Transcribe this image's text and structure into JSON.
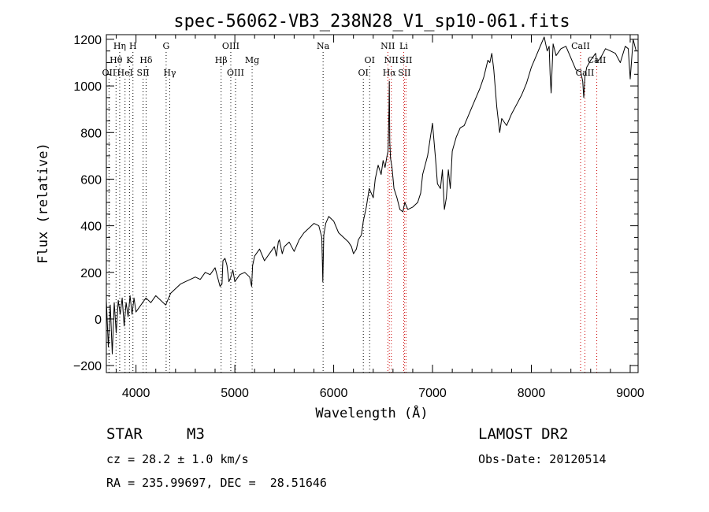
{
  "chart_data": {
    "type": "line",
    "title": "spec-56062-VB3_238N28_V1_sp10-061.fits",
    "xlabel": "Wavelength (Å)",
    "ylabel": "Flux (relative)",
    "xlim": [
      3700,
      9080
    ],
    "ylim": [
      -230,
      1220
    ],
    "xticks": [
      4000,
      5000,
      6000,
      7000,
      8000,
      9000
    ],
    "yticks": [
      -200,
      0,
      200,
      400,
      600,
      800,
      1000,
      1200
    ],
    "grid": false,
    "series": [
      {
        "x": [
          3700,
          3720,
          3740,
          3760,
          3780,
          3800,
          3820,
          3840,
          3860,
          3880,
          3900,
          3920,
          3940,
          3960,
          3980,
          4000,
          4050,
          4100,
          4150,
          4200,
          4250,
          4300,
          4350,
          4400,
          4450,
          4500,
          4550,
          4600,
          4650,
          4700,
          4750,
          4800,
          4850,
          4870,
          4880,
          4900,
          4920,
          4940,
          4960,
          4980,
          5000,
          5050,
          5100,
          5150,
          5170,
          5180,
          5200,
          5250,
          5300,
          5350,
          5400,
          5420,
          5440,
          5450,
          5480,
          5500,
          5550,
          5600,
          5650,
          5700,
          5750,
          5800,
          5850,
          5880,
          5890,
          5900,
          5920,
          5950,
          6000,
          6050,
          6100,
          6150,
          6180,
          6200,
          6230,
          6250,
          6280,
          6300,
          6330,
          6360,
          6400,
          6420,
          6450,
          6480,
          6500,
          6520,
          6540,
          6550,
          6560,
          6563,
          6568,
          6575,
          6590,
          6610,
          6640,
          6670,
          6700,
          6720,
          6750,
          6800,
          6850,
          6880,
          6900,
          6950,
          7000,
          7030,
          7050,
          7080,
          7100,
          7120,
          7140,
          7160,
          7180,
          7200,
          7240,
          7280,
          7320,
          7360,
          7400,
          7440,
          7480,
          7520,
          7560,
          7580,
          7600,
          7620,
          7650,
          7680,
          7700,
          7750,
          7800,
          7850,
          7900,
          7950,
          8000,
          8050,
          8100,
          8130,
          8160,
          8180,
          8190,
          8200,
          8220,
          8250,
          8300,
          8350,
          8400,
          8450,
          8500,
          8520,
          8530,
          8542,
          8560,
          8600,
          8650,
          8662,
          8700,
          8750,
          8800,
          8850,
          8900,
          8950,
          8980,
          9000,
          9030,
          9060
        ],
        "y": [
          80,
          -120,
          60,
          -150,
          70,
          -60,
          80,
          20,
          90,
          -30,
          70,
          10,
          100,
          20,
          90,
          30,
          60,
          90,
          70,
          100,
          80,
          60,
          110,
          130,
          150,
          160,
          170,
          180,
          170,
          200,
          190,
          220,
          140,
          150,
          250,
          260,
          230,
          160,
          180,
          210,
          160,
          190,
          200,
          180,
          140,
          230,
          270,
          300,
          250,
          280,
          310,
          270,
          330,
          340,
          280,
          310,
          330,
          290,
          340,
          370,
          390,
          410,
          400,
          350,
          160,
          360,
          410,
          440,
          420,
          370,
          350,
          330,
          310,
          280,
          300,
          340,
          360,
          420,
          480,
          560,
          520,
          600,
          660,
          620,
          680,
          650,
          700,
          720,
          900,
          1020,
          760,
          690,
          650,
          560,
          520,
          470,
          460,
          500,
          470,
          480,
          500,
          540,
          620,
          700,
          840,
          690,
          580,
          560,
          640,
          470,
          520,
          640,
          560,
          720,
          780,
          820,
          830,
          870,
          910,
          950,
          990,
          1040,
          1110,
          1100,
          1140,
          1070,
          910,
          800,
          860,
          830,
          880,
          920,
          960,
          1010,
          1080,
          1130,
          1180,
          1210,
          1150,
          1170,
          1050,
          970,
          1180,
          1130,
          1160,
          1170,
          1120,
          1070,
          1060,
          1020,
          950,
          1040,
          1080,
          1110,
          1140,
          1100,
          1120,
          1160,
          1150,
          1140,
          1100,
          1170,
          1160,
          1030,
          1200,
          1150
        ]
      }
    ],
    "line_markers": [
      {
        "label": "OII",
        "x": 3727,
        "row": 3,
        "color": "black"
      },
      {
        "label": "Hθ",
        "x": 3798,
        "row": 2,
        "color": "black"
      },
      {
        "label": "Hη",
        "x": 3835,
        "row": 1,
        "color": "black"
      },
      {
        "label": "HeI",
        "x": 3889,
        "row": 3,
        "color": "black"
      },
      {
        "label": "K",
        "x": 3934,
        "row": 2,
        "color": "black"
      },
      {
        "label": "H",
        "x": 3969,
        "row": 1,
        "color": "black"
      },
      {
        "label": "SII",
        "x": 4072,
        "row": 3,
        "color": "black"
      },
      {
        "label": "Hδ",
        "x": 4102,
        "row": 2,
        "color": "black"
      },
      {
        "label": "G",
        "x": 4305,
        "row": 1,
        "color": "black"
      },
      {
        "label": "Hγ",
        "x": 4341,
        "row": 3,
        "color": "black"
      },
      {
        "label": "Hβ",
        "x": 4861,
        "row": 2,
        "color": "black"
      },
      {
        "label": "OIII",
        "x": 4959,
        "row": 1,
        "color": "black"
      },
      {
        "label": "OIII",
        "x": 5007,
        "row": 3,
        "color": "black"
      },
      {
        "label": "Mg",
        "x": 5175,
        "row": 2,
        "color": "black"
      },
      {
        "label": "Na",
        "x": 5893,
        "row": 1,
        "color": "black"
      },
      {
        "label": "OI",
        "x": 6300,
        "row": 3,
        "color": "black"
      },
      {
        "label": "OI",
        "x": 6364,
        "row": 2,
        "color": "black"
      },
      {
        "label": "NII",
        "x": 6548,
        "row": 1,
        "color": "red"
      },
      {
        "label": "Hα",
        "x": 6563,
        "row": 3,
        "color": "red"
      },
      {
        "label": "NII",
        "x": 6583,
        "row": 2,
        "color": "red"
      },
      {
        "label": "Li",
        "x": 6708,
        "row": 1,
        "color": "red"
      },
      {
        "label": "SII",
        "x": 6716,
        "row": 3,
        "color": "red"
      },
      {
        "label": "SII",
        "x": 6731,
        "row": 2,
        "color": "red"
      },
      {
        "label": "CaII",
        "x": 8498,
        "row": 1,
        "color": "red"
      },
      {
        "label": "CaII",
        "x": 8542,
        "row": 3,
        "color": "red"
      },
      {
        "label": "CaII",
        "x": 8662,
        "row": 2,
        "color": "red"
      }
    ]
  },
  "info": {
    "object_class": "STAR",
    "subclass": "M3",
    "survey": "LAMOST DR2",
    "cz": "cz = 28.2 ± 1.0 km/s",
    "obs_date": "Obs-Date: 20120514",
    "coords": "RA = 235.99697, DEC =  28.51646"
  }
}
